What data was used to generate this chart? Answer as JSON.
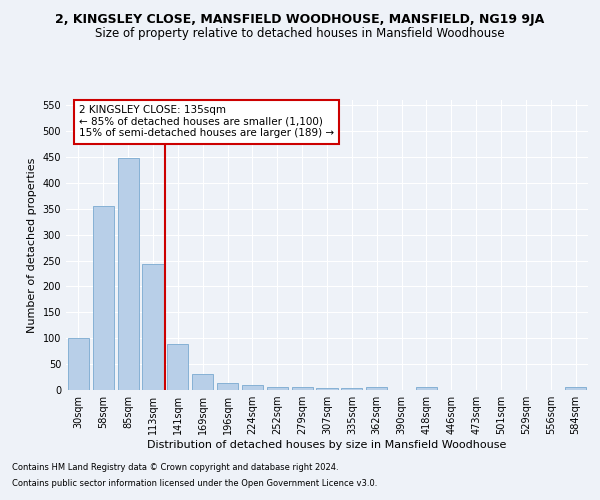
{
  "title": "2, KINGSLEY CLOSE, MANSFIELD WOODHOUSE, MANSFIELD, NG19 9JA",
  "subtitle": "Size of property relative to detached houses in Mansfield Woodhouse",
  "xlabel": "Distribution of detached houses by size in Mansfield Woodhouse",
  "ylabel": "Number of detached properties",
  "categories": [
    "30sqm",
    "58sqm",
    "85sqm",
    "113sqm",
    "141sqm",
    "169sqm",
    "196sqm",
    "224sqm",
    "252sqm",
    "279sqm",
    "307sqm",
    "335sqm",
    "362sqm",
    "390sqm",
    "418sqm",
    "446sqm",
    "473sqm",
    "501sqm",
    "529sqm",
    "556sqm",
    "584sqm"
  ],
  "values": [
    101,
    356,
    448,
    243,
    88,
    30,
    14,
    10,
    6,
    5,
    4,
    4,
    5,
    0,
    5,
    0,
    0,
    0,
    0,
    0,
    5
  ],
  "bar_color": "#b8cfe8",
  "bar_edge_color": "#7aaad0",
  "vline_color": "#cc0000",
  "vline_x_index": 3.5,
  "ylim": [
    0,
    560
  ],
  "yticks": [
    0,
    50,
    100,
    150,
    200,
    250,
    300,
    350,
    400,
    450,
    500,
    550
  ],
  "annotation_title": "2 KINGSLEY CLOSE: 135sqm",
  "annotation_line1": "← 85% of detached houses are smaller (1,100)",
  "annotation_line2": "15% of semi-detached houses are larger (189) →",
  "annotation_box_color": "#ffffff",
  "annotation_box_edge_color": "#cc0000",
  "footnote1": "Contains HM Land Registry data © Crown copyright and database right 2024.",
  "footnote2": "Contains public sector information licensed under the Open Government Licence v3.0.",
  "background_color": "#eef2f8",
  "grid_color": "#ffffff",
  "title_fontsize": 9,
  "subtitle_fontsize": 8.5,
  "axis_label_fontsize": 8,
  "tick_fontsize": 7,
  "annotation_fontsize": 7.5,
  "footnote_fontsize": 6
}
